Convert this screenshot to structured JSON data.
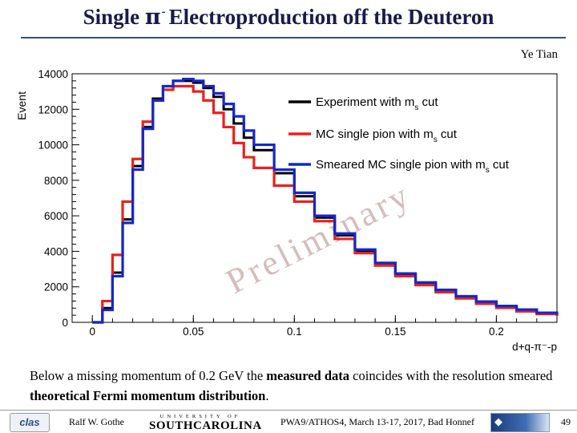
{
  "header": {
    "title_pre": "Single ",
    "title_symbol": "π",
    "title_sup": "-",
    "title_post": "Electroproduction off the Deuteron",
    "author": "Ye Tian"
  },
  "chart_data": {
    "type": "line",
    "ylabel": "Event",
    "xlabel": "d+q-π⁻-p",
    "xlim": [
      -0.01,
      0.23
    ],
    "ylim": [
      0,
      14000
    ],
    "xticks": [
      0,
      0.05,
      0.1,
      0.15,
      0.2
    ],
    "xtick_labels": [
      "0",
      "0.05",
      "0.1",
      "0.15",
      "0.2"
    ],
    "yticks": [
      0,
      2000,
      4000,
      6000,
      8000,
      10000,
      12000,
      14000
    ],
    "ytick_labels": [
      "0",
      "2000",
      "4000",
      "6000",
      "8000",
      "10000",
      "12000",
      "14000"
    ],
    "watermark": "Preliminary",
    "legend_position": "top-right",
    "series": [
      {
        "name": "Experiment with m",
        "sub": "s",
        "suffix": " cut",
        "color": "#000000",
        "x": [
          0.0,
          0.005,
          0.01,
          0.015,
          0.02,
          0.025,
          0.03,
          0.035,
          0.04,
          0.045,
          0.05,
          0.055,
          0.06,
          0.065,
          0.07,
          0.075,
          0.08,
          0.09,
          0.1,
          0.11,
          0.12,
          0.13,
          0.14,
          0.15,
          0.16,
          0.17,
          0.18,
          0.19,
          0.2,
          0.21,
          0.22,
          0.23
        ],
        "y": [
          0,
          800,
          2800,
          5800,
          8800,
          11000,
          12600,
          13300,
          13600,
          13600,
          13500,
          13200,
          12700,
          12000,
          11200,
          10400,
          9700,
          8400,
          7100,
          5900,
          4900,
          4000,
          3300,
          2700,
          2200,
          1800,
          1450,
          1150,
          900,
          700,
          520,
          400
        ]
      },
      {
        "name": "MC single pion with m",
        "sub": "s",
        "suffix": " cut",
        "color": "#e8221b",
        "x": [
          0.0,
          0.005,
          0.01,
          0.015,
          0.02,
          0.025,
          0.03,
          0.035,
          0.04,
          0.045,
          0.05,
          0.055,
          0.06,
          0.065,
          0.07,
          0.075,
          0.08,
          0.09,
          0.1,
          0.11,
          0.12,
          0.13,
          0.14,
          0.15,
          0.16,
          0.17,
          0.18,
          0.19,
          0.2,
          0.21,
          0.22,
          0.23
        ],
        "y": [
          0,
          1200,
          3800,
          6800,
          9200,
          11300,
          12500,
          13100,
          13300,
          13300,
          13000,
          12500,
          11800,
          11000,
          10100,
          9300,
          8700,
          7700,
          6800,
          5700,
          4700,
          3900,
          3200,
          2600,
          2100,
          1700,
          1350,
          1050,
          820,
          620,
          470,
          360
        ]
      },
      {
        "name": "Smeared MC single pion with m",
        "sub": "s",
        "suffix": " cut",
        "color": "#1528c8",
        "x": [
          0.0,
          0.005,
          0.01,
          0.015,
          0.02,
          0.025,
          0.03,
          0.035,
          0.04,
          0.045,
          0.05,
          0.055,
          0.06,
          0.065,
          0.07,
          0.075,
          0.08,
          0.09,
          0.1,
          0.11,
          0.12,
          0.13,
          0.14,
          0.15,
          0.16,
          0.17,
          0.18,
          0.19,
          0.2,
          0.21,
          0.22,
          0.23
        ],
        "y": [
          0,
          700,
          2600,
          5600,
          8600,
          10900,
          12500,
          13300,
          13600,
          13700,
          13600,
          13300,
          12900,
          12300,
          11600,
          10800,
          10000,
          8600,
          7300,
          6000,
          5000,
          4100,
          3350,
          2750,
          2250,
          1830,
          1470,
          1170,
          920,
          720,
          540,
          420
        ]
      }
    ]
  },
  "caption": {
    "part1": "Below a missing momentum of 0.2 GeV the ",
    "bold1": "measured data",
    "part2": " coincides with the resolution smeared ",
    "bold2": "theoretical Fermi momentum distribution",
    "part3": "."
  },
  "footer": {
    "clas_logo": "clas",
    "presenter": "Ralf  W. Gothe",
    "usc_top": "UNIVERSITY OF",
    "usc_bottom": "SOUTHCAROLINA",
    "conference": "PWA9/ATHOS4, March 13-17, 2017, Bad Honnef",
    "page": "49"
  },
  "colors": {
    "title": "#1a1a4a",
    "rule": "#3b4a8a"
  }
}
